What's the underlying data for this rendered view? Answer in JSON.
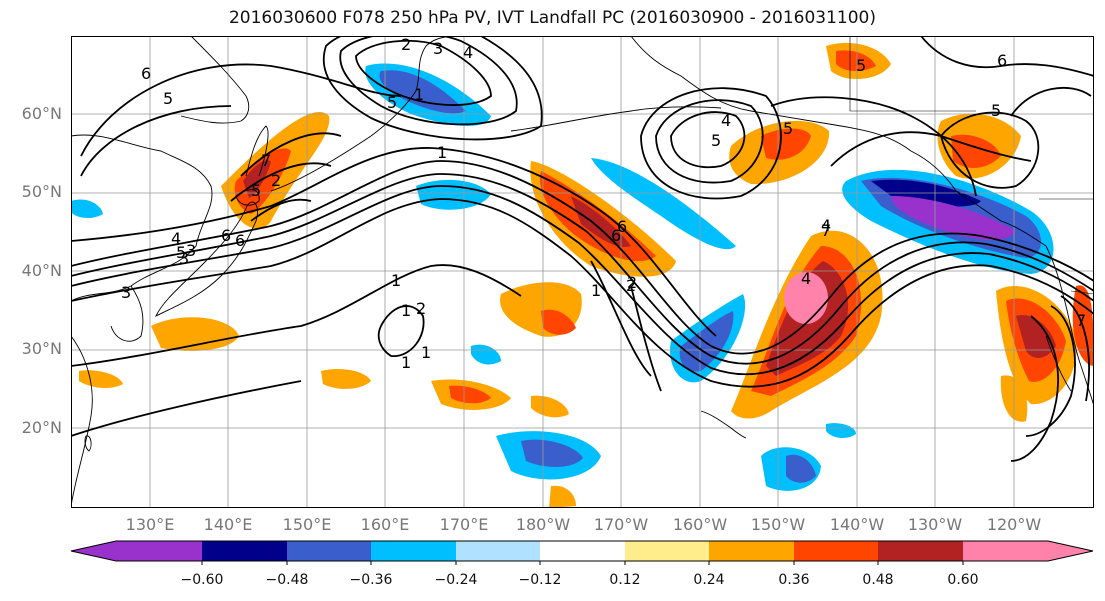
{
  "title": "2016030600 F078 250 hPa PV, IVT Landfall PC (2016030900 - 2016031100)",
  "lat_labels": [
    "60°N",
    "50°N",
    "40°N",
    "30°N",
    "20°N"
  ],
  "lon_labels": [
    "130°E",
    "140°E",
    "150°E",
    "160°E",
    "170°E",
    "180°W",
    "170°W",
    "160°W",
    "150°W",
    "140°W",
    "130°W",
    "120°W"
  ],
  "colorbar": {
    "colors": [
      "#9932cc",
      "#00008b",
      "#3a5fcd",
      "#00bfff",
      "#b0e2ff",
      "#ffffff",
      "#ffec8b",
      "#ffa500",
      "#ff4500",
      "#b22222",
      "#ff82ab"
    ],
    "tick_labels": [
      "−0.60",
      "−0.48",
      "−0.36",
      "−0.24",
      "−0.12",
      "0.12",
      "0.24",
      "0.36",
      "0.48",
      "0.60"
    ]
  },
  "contour_labels": [
    "6",
    "5",
    "2",
    "3",
    "4",
    "5",
    "1",
    "1",
    "1",
    "6",
    "3",
    "4",
    "5",
    "2",
    "1",
    "4",
    "5",
    "6",
    "5",
    "2",
    "1",
    "4",
    "2",
    "1",
    "6",
    "5",
    "7",
    "7",
    "4",
    "5",
    "6",
    "7",
    "3",
    "1",
    "6",
    "5",
    "2",
    "3"
  ]
}
